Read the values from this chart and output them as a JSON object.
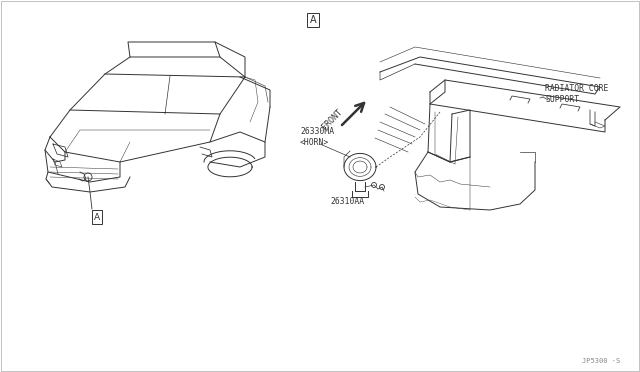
{
  "bg_color": "#ffffff",
  "line_color": "#333333",
  "fig_width": 6.4,
  "fig_height": 3.72,
  "dpi": 100,
  "title_box_label": "A",
  "part_label_1": "26330MA\n<HORN>",
  "part_label_2": "26310AA",
  "radiator_label": "RADIATOR CORE\nSUPPORT",
  "front_label": "FRONT",
  "footer_label": "JP5300 ·S",
  "callout_box_label": "A"
}
